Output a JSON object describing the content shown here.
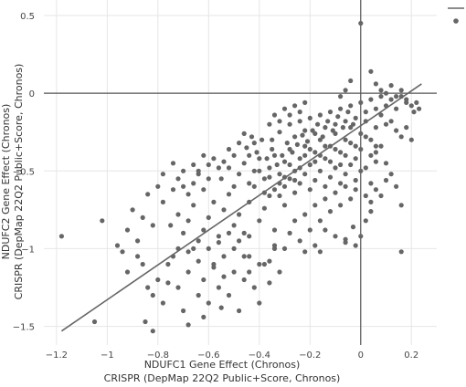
{
  "chart_data": {
    "type": "scatter",
    "xlabel": [
      "NDUFC1 Gene Effect (Chronos)",
      "CRISPR (DepMap 22Q2 Public+Score, Chronos)"
    ],
    "ylabel": [
      "NDUFC2 Gene Effect (Chronos)",
      "CRISPR (DepMap 22Q2 Public+Score, Chronos)"
    ],
    "xlim": [
      -1.25,
      0.3
    ],
    "ylim": [
      -1.62,
      0.6
    ],
    "x_ticks": [
      -1.2,
      -1,
      -0.8,
      -0.6,
      -0.4,
      -0.2,
      0,
      0.2
    ],
    "x_tick_labels": [
      "−1.2",
      "−1",
      "−0.8",
      "−0.6",
      "−0.4",
      "−0.2",
      "0",
      "0.2"
    ],
    "y_ticks": [
      0.5,
      0,
      -0.5,
      -1,
      -1.5
    ],
    "y_tick_labels": [
      "0.5",
      "0",
      "−0.5",
      "−1",
      "−1.5"
    ],
    "grid": true,
    "reference_lines": {
      "x": 0,
      "y": 0
    },
    "trend_line": {
      "x": [
        -1.18,
        0.24
      ],
      "y": [
        -1.53,
        0.06
      ]
    },
    "legend": {
      "position": "top-right",
      "entries": [
        {
          "symbol": "line"
        },
        {
          "symbol": "marker"
        }
      ]
    },
    "marker_color": "#666666",
    "line_color": "#666666",
    "points": [
      [
        -1.18,
        -0.92
      ],
      [
        -1.02,
        -0.82
      ],
      [
        -1.05,
        -1.47
      ],
      [
        -0.85,
        -1.47
      ],
      [
        -0.82,
        -1.53
      ],
      [
        -0.68,
        -1.49
      ],
      [
        -0.62,
        -1.44
      ],
      [
        -0.55,
        -1.38
      ],
      [
        -0.96,
        -0.98
      ],
      [
        -0.94,
        -1.02
      ],
      [
        -0.92,
        -1.15
      ],
      [
        -0.88,
        -0.95
      ],
      [
        -0.86,
        -1.1
      ],
      [
        -0.84,
        -1.25
      ],
      [
        -0.82,
        -1.3
      ],
      [
        -0.8,
        -1.2
      ],
      [
        -0.78,
        -1.35
      ],
      [
        -0.76,
        -1.1
      ],
      [
        -0.74,
        -1.05
      ],
      [
        -0.72,
        -1.25
      ],
      [
        -0.7,
        -1.4
      ],
      [
        -0.68,
        -1.15
      ],
      [
        -0.66,
        -1.0
      ],
      [
        -0.64,
        -1.3
      ],
      [
        -0.62,
        -1.2
      ],
      [
        -0.6,
        -1.35
      ],
      [
        -0.58,
        -1.1
      ],
      [
        -0.56,
        -1.25
      ],
      [
        -0.54,
        -1.05
      ],
      [
        -0.52,
        -1.3
      ],
      [
        -0.5,
        -1.15
      ],
      [
        -0.48,
        -1.4
      ],
      [
        -0.46,
        -1.2
      ],
      [
        -0.44,
        -1.05
      ],
      [
        -0.42,
        -1.25
      ],
      [
        -0.4,
        -1.35
      ],
      [
        -0.38,
        -1.1
      ],
      [
        -0.36,
        -1.22
      ],
      [
        -0.34,
        -1.0
      ],
      [
        -0.32,
        -1.15
      ],
      [
        -0.78,
        -0.7
      ],
      [
        -0.75,
        -0.85
      ],
      [
        -0.72,
        -0.78
      ],
      [
        -0.7,
        -0.9
      ],
      [
        -0.68,
        -0.82
      ],
      [
        -0.66,
        -0.72
      ],
      [
        -0.64,
        -0.95
      ],
      [
        -0.62,
        -0.88
      ],
      [
        -0.6,
        -0.8
      ],
      [
        -0.58,
        -0.7
      ],
      [
        -0.56,
        -0.92
      ],
      [
        -0.54,
        -0.75
      ],
      [
        -0.52,
        -0.65
      ],
      [
        -0.5,
        -0.85
      ],
      [
        -0.48,
        -0.78
      ],
      [
        -0.46,
        -0.9
      ],
      [
        -0.44,
        -0.7
      ],
      [
        -0.42,
        -0.6
      ],
      [
        -0.4,
        -0.82
      ],
      [
        -0.38,
        -0.74
      ],
      [
        -0.36,
        -0.66
      ],
      [
        -0.34,
        -0.88
      ],
      [
        -0.32,
        -0.58
      ],
      [
        -0.3,
        -0.72
      ],
      [
        -0.55,
        -0.55
      ],
      [
        -0.52,
        -0.48
      ],
      [
        -0.5,
        -0.6
      ],
      [
        -0.48,
        -0.52
      ],
      [
        -0.46,
        -0.45
      ],
      [
        -0.44,
        -0.58
      ],
      [
        -0.42,
        -0.5
      ],
      [
        -0.4,
        -0.42
      ],
      [
        -0.38,
        -0.55
      ],
      [
        -0.36,
        -0.48
      ],
      [
        -0.34,
        -0.4
      ],
      [
        -0.32,
        -0.52
      ],
      [
        -0.3,
        -0.44
      ],
      [
        -0.28,
        -0.36
      ],
      [
        -0.26,
        -0.5
      ],
      [
        -0.24,
        -0.42
      ],
      [
        -0.22,
        -0.34
      ],
      [
        -0.2,
        -0.46
      ],
      [
        -0.18,
        -0.38
      ],
      [
        -0.16,
        -0.3
      ],
      [
        -0.14,
        -0.42
      ],
      [
        -0.12,
        -0.34
      ],
      [
        -0.1,
        -0.26
      ],
      [
        -0.08,
        -0.38
      ],
      [
        -0.06,
        -0.3
      ],
      [
        -0.04,
        -0.22
      ],
      [
        -0.02,
        -0.34
      ],
      [
        0.0,
        -0.26
      ],
      [
        0.02,
        -0.18
      ],
      [
        0.04,
        -0.3
      ],
      [
        0.06,
        -0.22
      ],
      [
        0.08,
        -0.14
      ],
      [
        -0.28,
        -0.2
      ],
      [
        -0.26,
        -0.28
      ],
      [
        -0.24,
        -0.18
      ],
      [
        -0.22,
        -0.24
      ],
      [
        -0.2,
        -0.16
      ],
      [
        -0.18,
        -0.26
      ],
      [
        -0.16,
        -0.14
      ],
      [
        -0.14,
        -0.22
      ],
      [
        -0.12,
        -0.12
      ],
      [
        -0.1,
        -0.2
      ],
      [
        -0.08,
        -0.1
      ],
      [
        -0.06,
        -0.18
      ],
      [
        -0.04,
        -0.08
      ],
      [
        -0.02,
        -0.16
      ],
      [
        0.0,
        -0.06
      ],
      [
        0.02,
        -0.12
      ],
      [
        0.04,
        -0.04
      ],
      [
        0.06,
        -0.1
      ],
      [
        0.08,
        -0.02
      ],
      [
        0.1,
        -0.08
      ],
      [
        0.12,
        -0.04
      ],
      [
        0.14,
        -0.1
      ],
      [
        0.16,
        -0.02
      ],
      [
        0.18,
        -0.06
      ],
      [
        -0.3,
        -0.6
      ],
      [
        -0.28,
        -0.55
      ],
      [
        -0.26,
        -0.64
      ],
      [
        -0.24,
        -0.58
      ],
      [
        -0.22,
        -0.52
      ],
      [
        -0.2,
        -0.62
      ],
      [
        -0.18,
        -0.56
      ],
      [
        -0.16,
        -0.5
      ],
      [
        -0.14,
        -0.6
      ],
      [
        -0.12,
        -0.54
      ],
      [
        -0.1,
        -0.48
      ],
      [
        -0.08,
        -0.58
      ],
      [
        -0.06,
        -0.52
      ],
      [
        -0.04,
        -0.46
      ],
      [
        -0.02,
        -0.56
      ],
      [
        0.0,
        -0.5
      ],
      [
        -0.35,
        -0.3
      ],
      [
        -0.32,
        -0.25
      ],
      [
        -0.29,
        -0.32
      ],
      [
        -0.27,
        -0.38
      ],
      [
        -0.25,
        -0.33
      ],
      [
        -0.23,
        -0.27
      ],
      [
        -0.21,
        -0.31
      ],
      [
        -0.19,
        -0.24
      ],
      [
        -0.17,
        -0.2
      ],
      [
        -0.15,
        -0.28
      ],
      [
        -0.13,
        -0.18
      ],
      [
        -0.11,
        -0.24
      ],
      [
        -0.09,
        -0.15
      ],
      [
        -0.07,
        -0.22
      ],
      [
        -0.05,
        -0.12
      ],
      [
        -0.03,
        -0.2
      ],
      [
        -0.45,
        -0.35
      ],
      [
        -0.43,
        -0.28
      ],
      [
        -0.41,
        -0.38
      ],
      [
        -0.39,
        -0.3
      ],
      [
        -0.37,
        -0.42
      ],
      [
        -0.35,
        -0.36
      ],
      [
        -0.33,
        -0.46
      ],
      [
        -0.31,
        -0.4
      ],
      [
        -0.6,
        -0.55
      ],
      [
        -0.62,
        -0.62
      ],
      [
        -0.64,
        -0.5
      ],
      [
        -0.66,
        -0.58
      ],
      [
        -0.68,
        -0.65
      ],
      [
        -0.7,
        -0.6
      ],
      [
        -0.72,
        -0.55
      ],
      [
        -0.74,
        -0.62
      ],
      [
        -0.84,
        -0.65
      ],
      [
        -0.82,
        -0.85
      ],
      [
        -0.8,
        -0.6
      ],
      [
        -0.86,
        -0.8
      ],
      [
        -0.9,
        -0.75
      ],
      [
        -0.92,
        -0.88
      ],
      [
        -0.88,
        -1.05
      ],
      [
        -0.76,
        -1.22
      ],
      [
        -0.58,
        -1.12
      ],
      [
        -0.54,
        -1.18
      ],
      [
        -0.5,
        -1.0
      ],
      [
        -0.46,
        -1.05
      ],
      [
        -0.44,
        -1.15
      ],
      [
        -0.4,
        -1.1
      ],
      [
        -0.36,
        -1.08
      ],
      [
        -0.3,
        -1.0
      ],
      [
        -0.28,
        -0.9
      ],
      [
        -0.26,
        -0.82
      ],
      [
        -0.24,
        -0.95
      ],
      [
        -0.22,
        -0.78
      ],
      [
        -0.2,
        -0.88
      ],
      [
        -0.18,
        -0.72
      ],
      [
        -0.16,
        -0.82
      ],
      [
        -0.14,
        -0.68
      ],
      [
        -0.12,
        -0.76
      ],
      [
        -0.1,
        -0.64
      ],
      [
        -0.08,
        -0.72
      ],
      [
        -0.06,
        -0.6
      ],
      [
        -0.04,
        -0.68
      ],
      [
        -0.02,
        -0.62
      ],
      [
        0.02,
        -0.66
      ],
      [
        0.04,
        -0.58
      ],
      [
        0.0,
        0.45
      ],
      [
        -0.08,
        -0.02
      ],
      [
        -0.06,
        0.02
      ],
      [
        -0.04,
        0.08
      ],
      [
        0.04,
        0.14
      ],
      [
        0.06,
        0.06
      ],
      [
        0.08,
        0.02
      ],
      [
        0.1,
        0.0
      ],
      [
        0.12,
        0.05
      ],
      [
        0.14,
        -0.02
      ],
      [
        0.16,
        0.02
      ],
      [
        0.18,
        -0.04
      ],
      [
        0.2,
        -0.08
      ],
      [
        0.22,
        -0.06
      ],
      [
        0.23,
        -0.1
      ],
      [
        0.21,
        -0.12
      ],
      [
        0.1,
        -0.2
      ],
      [
        0.12,
        -0.18
      ],
      [
        0.14,
        -0.24
      ],
      [
        0.16,
        -0.28
      ],
      [
        0.18,
        -0.22
      ],
      [
        0.2,
        -0.3
      ],
      [
        0.08,
        -0.34
      ],
      [
        0.06,
        -0.38
      ],
      [
        0.1,
        -0.45
      ],
      [
        0.12,
        -0.52
      ],
      [
        0.14,
        -0.6
      ],
      [
        0.08,
        -0.66
      ],
      [
        0.16,
        -0.72
      ],
      [
        0.04,
        -0.76
      ],
      [
        0.02,
        -0.82
      ],
      [
        0.0,
        -0.92
      ],
      [
        -0.02,
        -0.98
      ],
      [
        -0.06,
        -0.96
      ],
      [
        -0.1,
        -0.92
      ],
      [
        -0.14,
        -0.88
      ],
      [
        -0.03,
        -0.86
      ],
      [
        -0.18,
        -0.98
      ],
      [
        -0.22,
        -1.02
      ],
      [
        -0.34,
        -0.98
      ],
      [
        -0.48,
        -0.95
      ],
      [
        -0.44,
        -0.92
      ],
      [
        -0.52,
        -0.9
      ],
      [
        -0.56,
        -0.96
      ],
      [
        -0.6,
        -1.0
      ],
      [
        -0.64,
        -1.08
      ],
      [
        -0.68,
        -1.02
      ],
      [
        -0.72,
        -1.0
      ],
      [
        0.16,
        -1.02
      ],
      [
        -0.06,
        -0.94
      ],
      [
        -0.16,
        -1.02
      ],
      [
        0.04,
        -0.7
      ],
      [
        0.06,
        -0.62
      ],
      [
        0.1,
        -0.56
      ],
      [
        0.02,
        -0.48
      ],
      [
        0.06,
        -0.44
      ],
      [
        -0.4,
        -0.5
      ],
      [
        -0.38,
        -0.64
      ],
      [
        -0.36,
        -0.54
      ],
      [
        -0.34,
        -0.62
      ],
      [
        -0.32,
        -0.66
      ],
      [
        -0.3,
        -0.54
      ],
      [
        -0.28,
        -0.46
      ],
      [
        -0.26,
        -0.56
      ],
      [
        -0.24,
        -0.48
      ],
      [
        -0.22,
        -0.4
      ],
      [
        -0.2,
        -0.36
      ],
      [
        -0.18,
        -0.44
      ],
      [
        -0.16,
        -0.4
      ],
      [
        -0.14,
        -0.34
      ],
      [
        -0.12,
        -0.44
      ],
      [
        -0.1,
        -0.36
      ],
      [
        -0.08,
        -0.46
      ],
      [
        -0.06,
        -0.4
      ],
      [
        -0.04,
        -0.32
      ],
      [
        -0.02,
        -0.42
      ],
      [
        0.0,
        -0.36
      ],
      [
        0.02,
        -0.28
      ],
      [
        0.04,
        -0.4
      ],
      [
        0.06,
        -0.34
      ],
      [
        -0.36,
        -0.2
      ],
      [
        -0.34,
        -0.14
      ],
      [
        -0.32,
        -0.18
      ],
      [
        -0.3,
        -0.1
      ],
      [
        -0.28,
        -0.14
      ],
      [
        -0.26,
        -0.08
      ],
      [
        -0.24,
        -0.12
      ],
      [
        -0.22,
        -0.06
      ],
      [
        -0.5,
        -0.4
      ],
      [
        -0.48,
        -0.32
      ],
      [
        -0.46,
        -0.26
      ],
      [
        -0.44,
        -0.4
      ],
      [
        -0.42,
        -0.32
      ],
      [
        -0.52,
        -0.36
      ],
      [
        -0.54,
        -0.44
      ],
      [
        -0.56,
        -0.48
      ],
      [
        -0.58,
        -0.42
      ],
      [
        -0.6,
        -0.46
      ],
      [
        -0.62,
        -0.4
      ],
      [
        -0.64,
        -0.52
      ],
      [
        -0.66,
        -0.46
      ],
      [
        -0.7,
        -0.5
      ],
      [
        -0.74,
        -0.45
      ],
      [
        -0.78,
        -0.52
      ]
    ]
  }
}
